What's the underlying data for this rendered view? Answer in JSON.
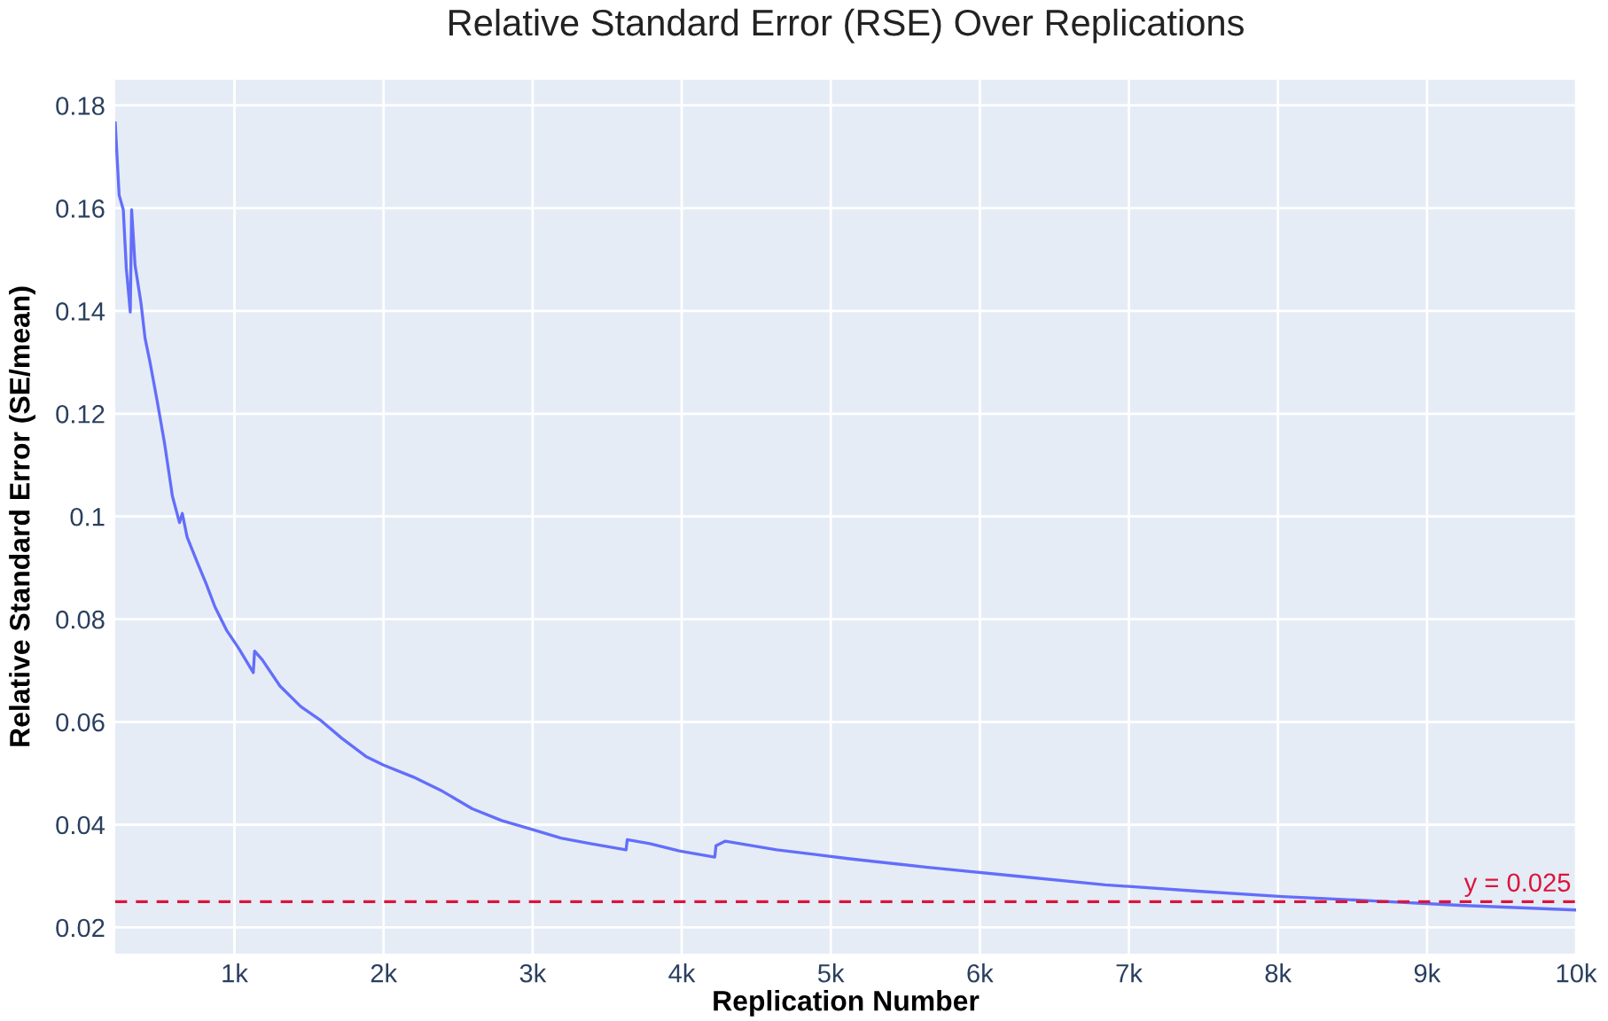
{
  "chart_data": {
    "type": "line",
    "title": "Relative Standard Error (RSE) Over Replications",
    "xlabel": "Replication Number",
    "ylabel": "Relative Standard Error (SE/mean)",
    "x": [
      200,
      226,
      254,
      274,
      301,
      310,
      333,
      373,
      400,
      432,
      483,
      531,
      571,
      583,
      631,
      650,
      682,
      750,
      810,
      869,
      948,
      1027,
      1126,
      1135,
      1186,
      1305,
      1444,
      1583,
      1721,
      1881,
      2000,
      2198,
      2396,
      2595,
      2793,
      2992,
      3190,
      3388,
      3627,
      3635,
      3786,
      3984,
      4222,
      4230,
      4293,
      4638,
      4896,
      5115,
      5650,
      6245,
      6840,
      7436,
      8031,
      8626,
      9222,
      10000
    ],
    "series": [
      {
        "color": "#636efa",
        "values": [
          0.1766,
          0.1626,
          0.1597,
          0.1484,
          0.1398,
          0.1597,
          0.1489,
          0.1415,
          0.1347,
          0.1302,
          0.1222,
          0.1142,
          0.1064,
          0.104,
          0.0988,
          0.1006,
          0.096,
          0.0911,
          0.0869,
          0.0824,
          0.0778,
          0.0744,
          0.0696,
          0.0738,
          0.0721,
          0.067,
          0.063,
          0.0602,
          0.0568,
          0.0533,
          0.0516,
          0.0493,
          0.0465,
          0.0431,
          0.0408,
          0.0391,
          0.0374,
          0.0363,
          0.0351,
          0.0371,
          0.0363,
          0.0349,
          0.0337,
          0.0359,
          0.0368,
          0.0351,
          0.0342,
          0.0334,
          0.0317,
          0.03,
          0.0283,
          0.0271,
          0.026,
          0.0252,
          0.0243,
          0.0234
        ]
      }
    ],
    "xlim": [
      200,
      10000
    ],
    "ylim": [
      0.0149,
      0.185
    ],
    "xticks": [
      {
        "value": 1000,
        "label": "1k"
      },
      {
        "value": 2000,
        "label": "2k"
      },
      {
        "value": 3000,
        "label": "3k"
      },
      {
        "value": 4000,
        "label": "4k"
      },
      {
        "value": 5000,
        "label": "5k"
      },
      {
        "value": 6000,
        "label": "6k"
      },
      {
        "value": 7000,
        "label": "7k"
      },
      {
        "value": 8000,
        "label": "8k"
      },
      {
        "value": 9000,
        "label": "9k"
      },
      {
        "value": 10000,
        "label": "10k"
      }
    ],
    "yticks": [
      0.02,
      0.04,
      0.06,
      0.08,
      0.1,
      0.12,
      0.14,
      0.16,
      0.18
    ],
    "ref_lines": [
      {
        "axis": "y",
        "value": 0.025,
        "label": "y = 0.025",
        "color": "#dc143c",
        "line_style": "dashed"
      }
    ],
    "grid": true,
    "marker": "none",
    "line_style": "solid"
  }
}
